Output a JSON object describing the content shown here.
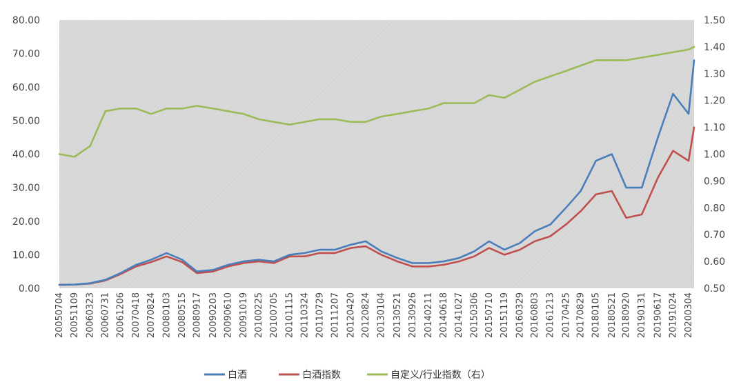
{
  "chart_data": {
    "type": "line",
    "title": "",
    "xlabel": "",
    "ylabel": "",
    "grid": false,
    "legend_position": "bottom",
    "plot_background": "#d9d9d9",
    "x_ticks": [
      "20050704",
      "20051109",
      "20060323",
      "20060731",
      "20061206",
      "20070418",
      "20070824",
      "20080103",
      "20080515",
      "20080917",
      "20090203",
      "20090610",
      "20091019",
      "20100225",
      "20100705",
      "20101115",
      "20110324",
      "20110729",
      "20111207",
      "20120420",
      "20120824",
      "20130104",
      "20130521",
      "20130926",
      "20140211",
      "20140618",
      "20141027",
      "20150306",
      "20150710",
      "20151119",
      "20160329",
      "20160803",
      "20161213",
      "20170425",
      "20170829",
      "20180105",
      "20180521",
      "20180920",
      "20190131",
      "20190617",
      "20191024",
      "20200304"
    ],
    "y_left": {
      "ticks": [
        "0.00",
        "10.00",
        "20.00",
        "30.00",
        "40.00",
        "50.00",
        "60.00",
        "70.00",
        "80.00"
      ],
      "range": [
        0,
        80
      ]
    },
    "y_right": {
      "ticks": [
        "0.50",
        "0.60",
        "0.70",
        "0.80",
        "0.90",
        "1.00",
        "1.10",
        "1.20",
        "1.30",
        "1.40",
        "1.50"
      ],
      "range": [
        0.5,
        1.5
      ]
    },
    "series": [
      {
        "name": "白酒",
        "axis": "left",
        "color": "#4a7ebb",
        "x": [
          "20050704",
          "20051109",
          "20060323",
          "20060731",
          "20061206",
          "20070418",
          "20070824",
          "20080103",
          "20080515",
          "20080917",
          "20090203",
          "20090610",
          "20091019",
          "20100225",
          "20100705",
          "20101115",
          "20110324",
          "20110729",
          "20111207",
          "20120420",
          "20120824",
          "20130104",
          "20130521",
          "20130926",
          "20140211",
          "20140618",
          "20141027",
          "20150306",
          "20150710",
          "20151119",
          "20160329",
          "20160803",
          "20161213",
          "20170425",
          "20170829",
          "20180105",
          "20180521",
          "20180920",
          "20190131",
          "20190617",
          "20191024",
          "20200304",
          "20200420"
        ],
        "values": [
          1.0,
          1.1,
          1.5,
          2.5,
          4.5,
          7.0,
          8.5,
          10.5,
          8.5,
          5.0,
          5.5,
          7.0,
          8.0,
          8.5,
          8.0,
          10.0,
          10.5,
          11.5,
          11.5,
          13.0,
          14.0,
          11.0,
          9.0,
          7.5,
          7.5,
          8.0,
          9.0,
          11.0,
          14.0,
          11.5,
          13.5,
          17.0,
          19.0,
          24.0,
          29.0,
          38.0,
          40.0,
          30.0,
          30.0,
          45.0,
          58.0,
          52.0,
          68.0
        ]
      },
      {
        "name": "白酒指数",
        "axis": "left",
        "color": "#c0504d",
        "x": [
          "20050704",
          "20051109",
          "20060323",
          "20060731",
          "20061206",
          "20070418",
          "20070824",
          "20080103",
          "20080515",
          "20080917",
          "20090203",
          "20090610",
          "20091019",
          "20100225",
          "20100705",
          "20101115",
          "20110324",
          "20110729",
          "20111207",
          "20120420",
          "20120824",
          "20130104",
          "20130521",
          "20130926",
          "20140211",
          "20140618",
          "20141027",
          "20150306",
          "20150710",
          "20151119",
          "20160329",
          "20160803",
          "20161213",
          "20170425",
          "20170829",
          "20180105",
          "20180521",
          "20180920",
          "20190131",
          "20190617",
          "20191024",
          "20200304",
          "20200420"
        ],
        "values": [
          1.0,
          1.1,
          1.4,
          2.3,
          4.2,
          6.5,
          7.8,
          9.5,
          7.8,
          4.5,
          5.0,
          6.5,
          7.5,
          8.0,
          7.5,
          9.5,
          9.5,
          10.5,
          10.5,
          12.0,
          12.5,
          10.0,
          8.0,
          6.5,
          6.5,
          7.0,
          8.0,
          9.5,
          12.0,
          10.0,
          11.5,
          14.0,
          15.5,
          19.0,
          23.0,
          28.0,
          29.0,
          21.0,
          22.0,
          33.0,
          41.0,
          38.0,
          48.0
        ]
      },
      {
        "name": "自定义/行业指数（右）",
        "axis": "right",
        "color": "#9bbb59",
        "x": [
          "20050704",
          "20051109",
          "20060323",
          "20060731",
          "20061206",
          "20070418",
          "20070824",
          "20080103",
          "20080515",
          "20080917",
          "20090203",
          "20090610",
          "20091019",
          "20100225",
          "20100705",
          "20101115",
          "20110324",
          "20110729",
          "20111207",
          "20120420",
          "20120824",
          "20130104",
          "20130521",
          "20130926",
          "20140211",
          "20140618",
          "20141027",
          "20150306",
          "20150710",
          "20151119",
          "20160329",
          "20160803",
          "20161213",
          "20170425",
          "20170829",
          "20180105",
          "20180521",
          "20180920",
          "20190131",
          "20190617",
          "20191024",
          "20200304",
          "20200420"
        ],
        "values": [
          1.0,
          0.99,
          1.03,
          1.16,
          1.17,
          1.17,
          1.15,
          1.17,
          1.17,
          1.18,
          1.17,
          1.16,
          1.15,
          1.13,
          1.12,
          1.11,
          1.12,
          1.13,
          1.13,
          1.12,
          1.12,
          1.14,
          1.15,
          1.16,
          1.17,
          1.19,
          1.19,
          1.19,
          1.22,
          1.21,
          1.24,
          1.27,
          1.29,
          1.31,
          1.33,
          1.35,
          1.35,
          1.35,
          1.36,
          1.37,
          1.38,
          1.39,
          1.4
        ]
      }
    ]
  }
}
